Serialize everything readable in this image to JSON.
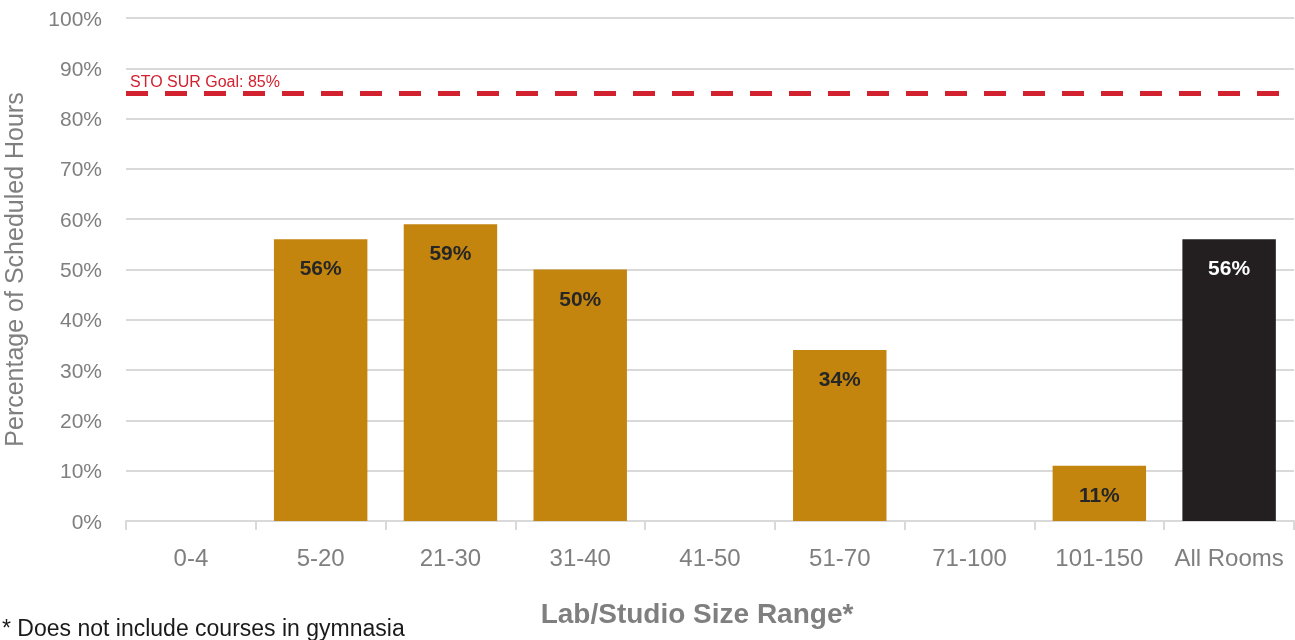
{
  "chart_data": {
    "type": "bar",
    "categories": [
      "0-4",
      "5-20",
      "21-30",
      "31-40",
      "41-50",
      "51-70",
      "71-100",
      "101-150",
      "All Rooms"
    ],
    "values": [
      null,
      56,
      59,
      50,
      null,
      34,
      null,
      11,
      56
    ],
    "colors": [
      null,
      "#c4850f",
      "#c4850f",
      "#c4850f",
      null,
      "#c4850f",
      null,
      "#c4850f",
      "#231f20"
    ],
    "value_labels": [
      null,
      "56%",
      "59%",
      "50%",
      null,
      "34%",
      null,
      "11%",
      "56%"
    ],
    "xlabel": "Lab/Studio Size Range*",
    "ylabel": "Percentage of Scheduled Hours",
    "ylim": [
      0,
      100
    ],
    "yticks": [
      {
        "value": 0,
        "label": "0%"
      },
      {
        "value": 10,
        "label": "10%"
      },
      {
        "value": 20,
        "label": "20%"
      },
      {
        "value": 30,
        "label": "30%"
      },
      {
        "value": 40,
        "label": "40%"
      },
      {
        "value": 50,
        "label": "50%"
      },
      {
        "value": 60,
        "label": "60%"
      },
      {
        "value": 70,
        "label": "70%"
      },
      {
        "value": 80,
        "label": "80%"
      },
      {
        "value": 90,
        "label": "90%"
      },
      {
        "value": 100,
        "label": "100%"
      }
    ],
    "ref_lines": [
      {
        "axis": "y",
        "value": 85,
        "label": "STO SUR Goal: 85%",
        "color": "#d2222f",
        "line_style": "dashed"
      }
    ],
    "annotations": [
      "* Does not include courses in gymnasia"
    ],
    "grid": "y"
  }
}
